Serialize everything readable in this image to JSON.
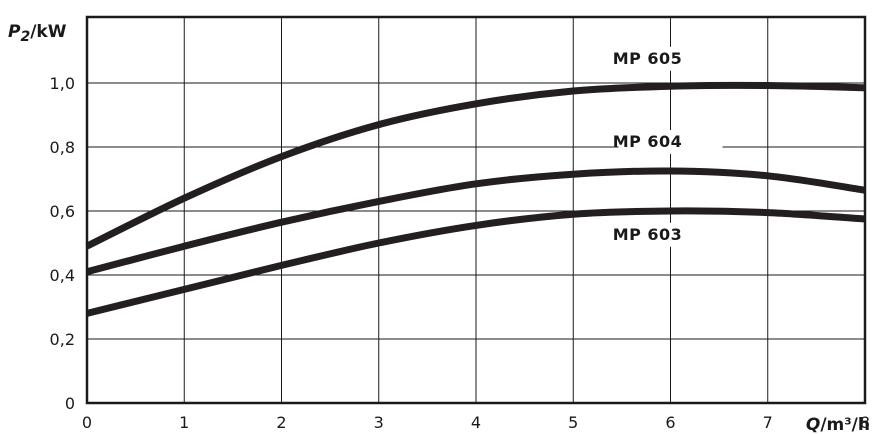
{
  "chart_data": {
    "type": "line",
    "ylabel_symbol": "P",
    "ylabel_subscript": "2",
    "ylabel_unit": "/kW",
    "xlabel_symbol": "Q",
    "xlabel_unit": "/m³/h",
    "xlim": [
      0,
      8
    ],
    "ylim": [
      0,
      1.1
    ],
    "x_ticks": [
      0,
      1,
      2,
      3,
      4,
      5,
      6,
      7,
      8
    ],
    "x_tick_labels": [
      "0",
      "1",
      "2",
      "3",
      "4",
      "5",
      "6",
      "7",
      "8"
    ],
    "y_ticks": [
      0,
      0.2,
      0.4,
      0.6,
      0.8,
      1.0
    ],
    "y_tick_labels": [
      "0",
      "0,2",
      "0,4",
      "0,6",
      "0,8",
      "1,0"
    ],
    "grid": true,
    "line_color": "#231f20",
    "series": [
      {
        "name": "MP 605",
        "x": [
          0,
          1,
          2,
          3,
          4,
          5,
          6,
          7,
          8
        ],
        "y": [
          0.49,
          0.64,
          0.77,
          0.87,
          0.935,
          0.975,
          0.99,
          0.992,
          0.985
        ]
      },
      {
        "name": "MP 604",
        "x": [
          0,
          1,
          2,
          3,
          4,
          5,
          6,
          7,
          8
        ],
        "y": [
          0.41,
          0.49,
          0.565,
          0.63,
          0.685,
          0.715,
          0.725,
          0.71,
          0.665
        ]
      },
      {
        "name": "MP 603",
        "x": [
          0,
          1,
          2,
          3,
          4,
          5,
          6,
          7,
          8
        ],
        "y": [
          0.28,
          0.355,
          0.43,
          0.5,
          0.555,
          0.59,
          0.6,
          0.595,
          0.575
        ]
      }
    ]
  }
}
